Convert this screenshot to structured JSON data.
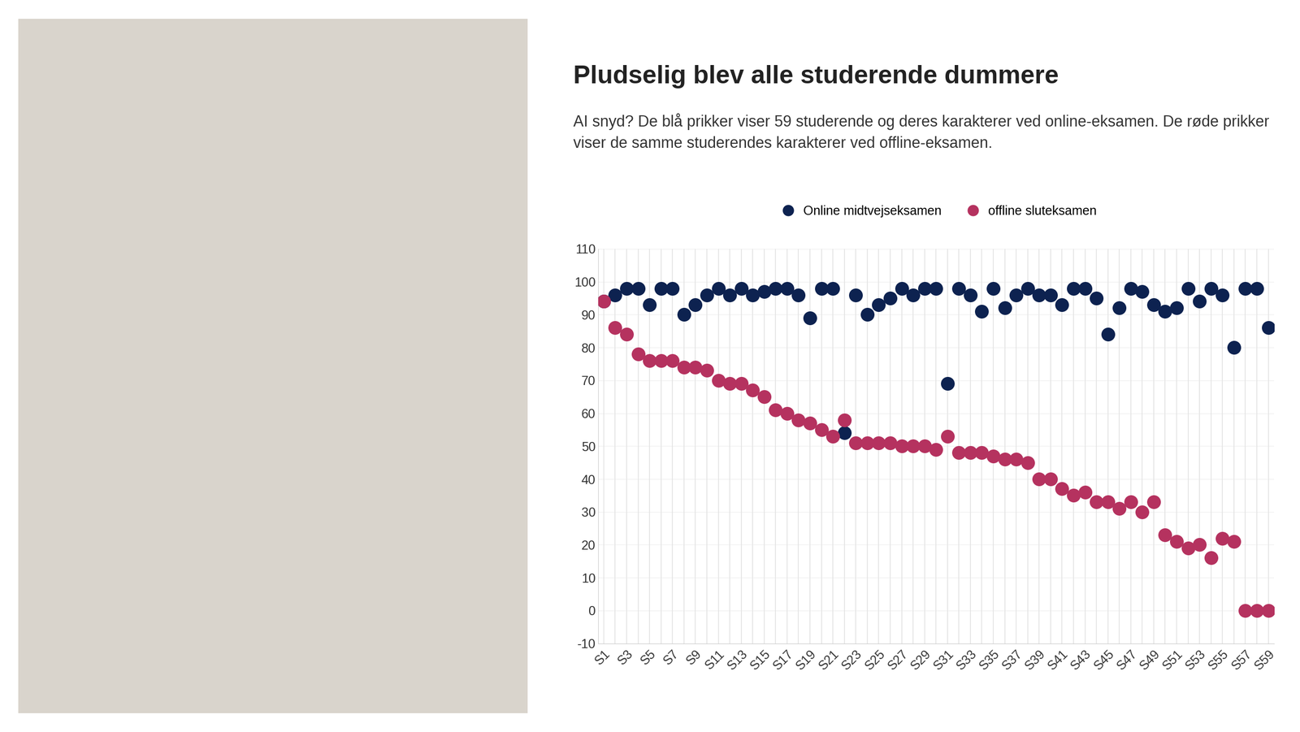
{
  "chart_data": {
    "type": "scatter",
    "title": "Pludselig blev alle studerende dummere",
    "subtitle": "AI snyd? De blå prikker viser 59 studerende og deres karakterer ved online-eksamen. De røde prikker viser de samme studerendes karakterer ved offline-eksamen.",
    "categories": [
      "S1",
      null,
      "S3",
      null,
      "S5",
      null,
      "S7",
      null,
      "S9",
      null,
      "S11",
      null,
      "S13",
      null,
      "S15",
      null,
      "S17",
      null,
      "S19",
      null,
      "S21",
      null,
      "S23",
      null,
      "S25",
      null,
      "S27",
      null,
      "S29",
      null,
      "S31",
      null,
      "S33",
      null,
      "S35",
      null,
      "S37",
      null,
      "S39",
      null,
      "S41",
      null,
      "S43",
      null,
      "S45",
      null,
      "S47",
      null,
      "S49",
      null,
      "S51",
      null,
      "S53",
      null,
      "S55",
      null,
      "S57",
      null,
      "S59"
    ],
    "series": [
      {
        "name": "Online midtvejseksamen",
        "color": "#0d2250",
        "marker": "circle",
        "values": [
          94,
          96,
          98,
          98,
          93,
          98,
          98,
          90,
          93,
          96,
          98,
          96,
          98,
          96,
          97,
          98,
          98,
          96,
          89,
          98,
          98,
          54,
          96,
          90,
          93,
          95,
          98,
          96,
          98,
          98,
          69,
          98,
          96,
          91,
          98,
          92,
          96,
          98,
          96,
          96,
          93,
          98,
          98,
          95,
          84,
          92,
          98,
          97,
          93,
          91,
          92,
          98,
          94,
          98,
          96,
          80,
          98,
          98,
          86
        ]
      },
      {
        "name": "offline sluteksamen",
        "color": "#b5325f",
        "marker": "circle",
        "values": [
          94,
          86,
          84,
          78,
          76,
          76,
          76,
          74,
          74,
          73,
          70,
          69,
          69,
          67,
          65,
          61,
          60,
          58,
          57,
          55,
          53,
          58,
          51,
          51,
          51,
          51,
          50,
          50,
          50,
          49,
          53,
          48,
          48,
          48,
          47,
          46,
          46,
          45,
          40,
          40,
          37,
          35,
          36,
          33,
          33,
          31,
          33,
          30,
          33,
          23,
          21,
          19,
          20,
          16,
          22,
          21,
          0,
          0,
          0
        ]
      }
    ],
    "ylim": [
      -10,
      110
    ],
    "yticks": [
      -10,
      0,
      10,
      20,
      30,
      40,
      50,
      60,
      70,
      80,
      90,
      100,
      110
    ],
    "grid": true,
    "legend": "upper center"
  }
}
